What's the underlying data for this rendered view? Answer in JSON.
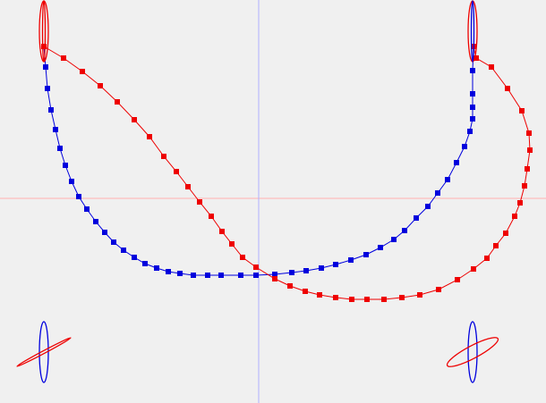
{
  "chart_data": {
    "type": "line",
    "title": "",
    "xlabel": "",
    "ylabel": "",
    "xlim": [
      -289,
      321
    ],
    "ylim": [
      -229,
      222
    ],
    "axes_lines": true,
    "colors": {
      "background": "#f0f0f0",
      "blue": "#0000dd",
      "red": "#ee0000",
      "axis_x": "#ffb0b0",
      "axis_y": "#b0b0ff"
    },
    "series": [
      {
        "color": "#0000dd",
        "marker": "square",
        "points": [
          [
            -240,
            170
          ],
          [
            -238,
            147
          ],
          [
            -236,
            123
          ],
          [
            -232,
            99
          ],
          [
            -227,
            77
          ],
          [
            -222,
            56
          ],
          [
            -216,
            37
          ],
          [
            -209,
            19
          ],
          [
            -201,
            2
          ],
          [
            -192,
            -12
          ],
          [
            -182,
            -26
          ],
          [
            -172,
            -38
          ],
          [
            -162,
            -49
          ],
          [
            -151,
            -58
          ],
          [
            -139,
            -66
          ],
          [
            -127,
            -73
          ],
          [
            -114,
            -78
          ],
          [
            -101,
            -82
          ],
          [
            -88,
            -84
          ],
          [
            -73,
            -86
          ],
          [
            -57,
            -86
          ],
          [
            -42,
            -86
          ],
          [
            -20,
            -86
          ],
          [
            -3,
            -86
          ],
          [
            18,
            -85
          ],
          [
            37,
            -83
          ],
          [
            53,
            -81
          ],
          [
            70,
            -78
          ],
          [
            86,
            -74
          ],
          [
            103,
            -69
          ],
          [
            120,
            -63
          ],
          [
            136,
            -55
          ],
          [
            151,
            -46
          ],
          [
            163,
            -36
          ],
          [
            176,
            -22
          ],
          [
            189,
            -9
          ],
          [
            200,
            6
          ],
          [
            211,
            21
          ],
          [
            221,
            40
          ],
          [
            230,
            58
          ],
          [
            236,
            75
          ],
          [
            239,
            89
          ],
          [
            239,
            102
          ],
          [
            239,
            117
          ],
          [
            239,
            143
          ],
          [
            240,
            170
          ]
        ]
      },
      {
        "color": "#ee0000",
        "marker": "square",
        "points": [
          [
            -240,
            170
          ],
          [
            -218,
            157
          ],
          [
            -197,
            142
          ],
          [
            -177,
            126
          ],
          [
            -158,
            108
          ],
          [
            -139,
            88
          ],
          [
            -122,
            69
          ],
          [
            -106,
            47
          ],
          [
            -92,
            30
          ],
          [
            -79,
            13
          ],
          [
            -66,
            -4
          ],
          [
            -53,
            -20
          ],
          [
            -41,
            -37
          ],
          [
            -30,
            -51
          ],
          [
            -18,
            -66
          ],
          [
            -3,
            -77
          ],
          [
            18,
            -90
          ],
          [
            35,
            -98
          ],
          [
            52,
            -104
          ],
          [
            68,
            -108
          ],
          [
            86,
            -111
          ],
          [
            104,
            -113
          ],
          [
            121,
            -113
          ],
          [
            140,
            -113
          ],
          [
            160,
            -111
          ],
          [
            180,
            -108
          ],
          [
            201,
            -102
          ],
          [
            222,
            -91
          ],
          [
            240,
            -79
          ],
          [
            255,
            -67
          ],
          [
            265,
            -53
          ],
          [
            276,
            -39
          ],
          [
            286,
            -20
          ],
          [
            292,
            -5
          ],
          [
            297,
            14
          ],
          [
            300,
            33
          ],
          [
            303,
            54
          ],
          [
            302,
            73
          ],
          [
            294,
            98
          ],
          [
            278,
            123
          ],
          [
            260,
            147
          ],
          [
            243,
            157
          ],
          [
            240,
            170
          ]
        ]
      }
    ],
    "glyphs": [
      {
        "center": [
          -240,
          187
        ],
        "ellipses": [
          {
            "color": "#ee0000",
            "rx": 5,
            "ry": 34,
            "rotate": 0
          },
          {
            "color": "#ee0000",
            "rx": 1.5,
            "ry": 34,
            "rotate": 0
          }
        ]
      },
      {
        "center": [
          239,
          187
        ],
        "ellipses": [
          {
            "color": "#ee0000",
            "rx": 5,
            "ry": 34,
            "rotate": 0
          },
          {
            "color": "#0000dd",
            "rx": 1.5,
            "ry": 34,
            "rotate": 0
          }
        ]
      },
      {
        "center": [
          -240,
          -172
        ],
        "ellipses": [
          {
            "color": "#0000dd",
            "rx": 5,
            "ry": 34,
            "rotate": 0
          },
          {
            "color": "#ee0000",
            "rx": 34,
            "ry": 1.5,
            "rotate": -28
          }
        ]
      },
      {
        "center": [
          239,
          -172
        ],
        "ellipses": [
          {
            "color": "#0000dd",
            "rx": 5,
            "ry": 34,
            "rotate": 0
          },
          {
            "color": "#ee0000",
            "rx": 32,
            "ry": 7,
            "rotate": -28
          }
        ]
      }
    ]
  }
}
